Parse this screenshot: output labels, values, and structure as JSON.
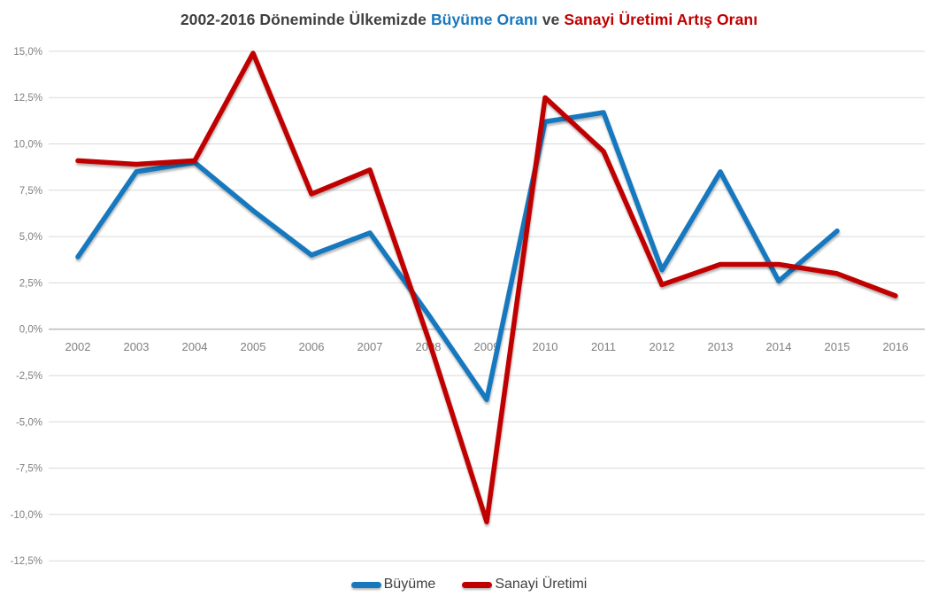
{
  "title": {
    "part1": "2002-2016 Döneminde Ülkemizde ",
    "growth": "Büyüme Oranı",
    "connector": " ve ",
    "industry": "Sanayi Üretimi Artış Oranı"
  },
  "colors": {
    "growth_blue": "#1878BE",
    "industry_red": "#C00000",
    "title_gray": "#404040",
    "axis_label_gray": "#7F7F7F",
    "gridline": "#D9D9D9",
    "zero_line": "#BFBFBF",
    "background": "#FFFFFF"
  },
  "legend": {
    "items": [
      {
        "label": "Büyüme",
        "color": "#1878BE"
      },
      {
        "label": "Sanayi Üretimi",
        "color": "#C00000"
      }
    ]
  },
  "chart_data": {
    "type": "line",
    "title": "2002-2016 Döneminde Ülkemizde Büyüme Oranı ve Sanayi Üretimi Artış Oranı",
    "x_labels": [
      "2002",
      "2003",
      "2004",
      "2005",
      "2006",
      "2007",
      "2008",
      "2009",
      "2010",
      "2011",
      "2012",
      "2013",
      "2014",
      "2015",
      "2016"
    ],
    "series": [
      {
        "name": "Büyüme",
        "color": "#1878BE",
        "values": [
          3.9,
          8.5,
          9.0,
          6.4,
          4.0,
          5.2,
          0.8,
          -3.8,
          11.2,
          11.7,
          3.2,
          8.5,
          2.6,
          5.3,
          null
        ]
      },
      {
        "name": "Sanayi Üretimi",
        "color": "#C00000",
        "values": [
          9.1,
          8.9,
          9.1,
          14.9,
          7.3,
          8.6,
          -0.5,
          -10.4,
          12.5,
          9.6,
          2.4,
          3.5,
          3.5,
          3.0,
          1.8
        ]
      }
    ],
    "y_ticks": [
      {
        "label": "15,0%",
        "value": 15
      },
      {
        "label": "12,5%",
        "value": 12.5
      },
      {
        "label": "10,0%",
        "value": 10
      },
      {
        "label": "7,5%",
        "value": 7.5
      },
      {
        "label": "5,0%",
        "value": 5
      },
      {
        "label": "2,5%",
        "value": 2.5
      },
      {
        "label": "0,0%",
        "value": 0
      },
      {
        "label": "-2,5%",
        "value": -2.5
      },
      {
        "label": "-5,0%",
        "value": -5
      },
      {
        "label": "-7,5%",
        "value": -7.5
      },
      {
        "label": "-10,0%",
        "value": -10
      },
      {
        "label": "-12,5%",
        "value": -12.5
      }
    ],
    "ylim": [
      -12.5,
      15
    ],
    "xlabel": "",
    "ylabel": "",
    "grid": true,
    "legend_position": "bottom",
    "decimal_separator": ","
  }
}
